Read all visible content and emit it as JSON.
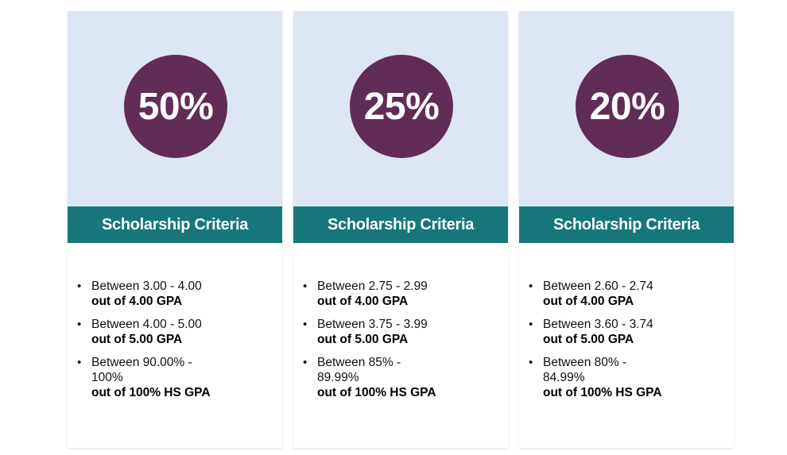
{
  "cards": [
    {
      "percent": "50%",
      "criteria_title": "Scholarship Criteria",
      "items": [
        {
          "range": "Between 3.00 - 4.00",
          "scale": "out of 4.00 GPA"
        },
        {
          "range": "Between 4.00 - 5.00",
          "scale": "out of 5.00 GPA"
        },
        {
          "range": "Between 90.00% - 100%",
          "scale": "out of 100% HS GPA"
        }
      ]
    },
    {
      "percent": "25%",
      "criteria_title": "Scholarship Criteria",
      "items": [
        {
          "range": "Between 2.75 - 2.99",
          "scale": "out of 4.00 GPA"
        },
        {
          "range": "Between 3.75 - 3.99",
          "scale": "out of 5.00 GPA"
        },
        {
          "range": "Between 85% - 89.99%",
          "scale": "out of 100% HS GPA"
        }
      ]
    },
    {
      "percent": "20%",
      "criteria_title": "Scholarship Criteria",
      "items": [
        {
          "range": "Between 2.60 - 2.74",
          "scale": "out of 4.00 GPA"
        },
        {
          "range": "Between 3.60 - 3.74",
          "scale": "out of 5.00 GPA"
        },
        {
          "range": "Between 80% - 84.99%",
          "scale": "out of 100% HS GPA"
        }
      ]
    }
  ],
  "colors": {
    "panel_background": "#dde6f3",
    "circle": "#612c56",
    "criteria_bar": "#17767a",
    "text": "#111111"
  }
}
